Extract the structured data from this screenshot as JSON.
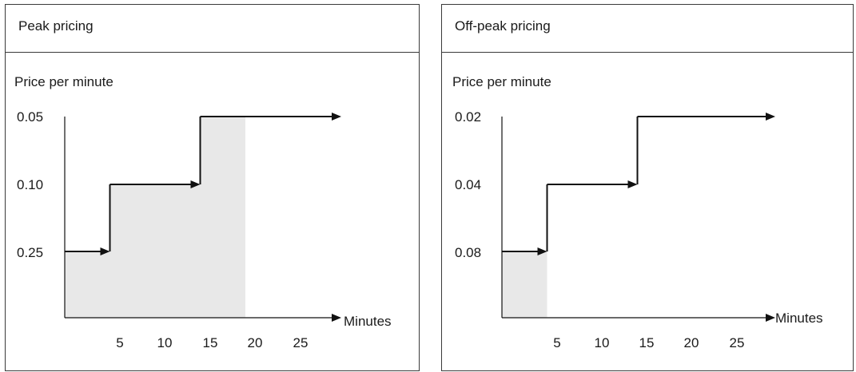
{
  "panels": [
    {
      "title": "Peak pricing",
      "ylabel": "Price per minute",
      "xlabel": "Minutes",
      "y_ticks": [
        "0.05",
        "0.10",
        "0.25"
      ],
      "x_ticks": [
        "5",
        "10",
        "15",
        "20",
        "25"
      ]
    },
    {
      "title": "Off-peak pricing",
      "ylabel": "Price per minute",
      "xlabel": "Minutes",
      "y_ticks": [
        "0.02",
        "0.04",
        "0.08"
      ],
      "x_ticks": [
        "5",
        "10",
        "15",
        "20",
        "25"
      ]
    }
  ],
  "chart_data": [
    {
      "type": "line",
      "title": "Peak pricing",
      "ylabel": "Price per minute",
      "xlabel": "Minutes",
      "y_tick_labels": [
        "0.25",
        "0.10",
        "0.05"
      ],
      "x_tick_labels": [
        5,
        10,
        15,
        20,
        25
      ],
      "steps": [
        {
          "from_minute": 0,
          "to_minute": 5,
          "price": 0.25
        },
        {
          "from_minute": 5,
          "to_minute": 15,
          "price": 0.1
        },
        {
          "from_minute": 15,
          "to_minute": null,
          "price": 0.05
        }
      ],
      "shaded_minutes": [
        0,
        20
      ],
      "shade_color": "#e8e8e8"
    },
    {
      "type": "line",
      "title": "Off-peak pricing",
      "ylabel": "Price per minute",
      "xlabel": "Minutes",
      "y_tick_labels": [
        "0.08",
        "0.04",
        "0.02"
      ],
      "x_tick_labels": [
        5,
        10,
        15,
        20,
        25
      ],
      "steps": [
        {
          "from_minute": 0,
          "to_minute": 5,
          "price": 0.08
        },
        {
          "from_minute": 5,
          "to_minute": 15,
          "price": 0.04
        },
        {
          "from_minute": 15,
          "to_minute": null,
          "price": 0.02
        }
      ],
      "shaded_minutes": [
        0,
        5
      ],
      "shade_color": "#e8e8e8"
    }
  ]
}
